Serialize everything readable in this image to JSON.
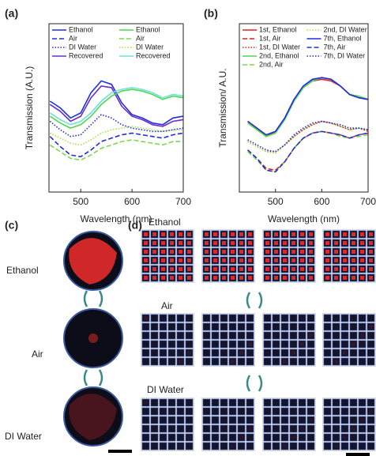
{
  "chart_data": [
    {
      "type": "line",
      "panel_label": "(a)",
      "x_label": "Wavelength (nm)",
      "y_label": "Transmission (A.U.)",
      "x": [
        440,
        460,
        480,
        500,
        520,
        540,
        560,
        580,
        600,
        620,
        640,
        660,
        680,
        700
      ],
      "xlim": [
        438,
        700
      ],
      "xticks": [
        500,
        600,
        700
      ],
      "ylim": [
        0,
        1
      ],
      "series": [
        {
          "name": "Ethanol",
          "color": "#1f2fe0",
          "dash": "solid",
          "values": [
            0.54,
            0.5,
            0.44,
            0.47,
            0.59,
            0.66,
            0.64,
            0.53,
            0.46,
            0.44,
            0.41,
            0.4,
            0.44,
            0.45
          ]
        },
        {
          "name": "Air",
          "color": "#1f2fe0",
          "dash": "dashed",
          "values": [
            0.33,
            0.27,
            0.22,
            0.21,
            0.25,
            0.3,
            0.32,
            0.34,
            0.35,
            0.34,
            0.33,
            0.32,
            0.34,
            0.35
          ]
        },
        {
          "name": "DI Water",
          "color": "#1f2fe0",
          "dash": "dotted",
          "values": [
            0.42,
            0.37,
            0.33,
            0.34,
            0.4,
            0.46,
            0.44,
            0.4,
            0.38,
            0.37,
            0.36,
            0.36,
            0.37,
            0.38
          ]
        },
        {
          "name": "Recovered",
          "color": "#6a2fc8",
          "dash": "solid",
          "values": [
            0.52,
            0.48,
            0.42,
            0.45,
            0.56,
            0.63,
            0.62,
            0.51,
            0.45,
            0.43,
            0.4,
            0.39,
            0.42,
            0.43
          ]
        },
        {
          "name": "Ethanol",
          "color": "#4ed84e",
          "dash": "solid",
          "values": [
            0.45,
            0.41,
            0.38,
            0.4,
            0.45,
            0.52,
            0.57,
            0.6,
            0.61,
            0.6,
            0.58,
            0.55,
            0.57,
            0.56
          ]
        },
        {
          "name": "Air",
          "color": "#7ed84e",
          "dash": "dashed",
          "values": [
            0.28,
            0.24,
            0.2,
            0.19,
            0.22,
            0.26,
            0.28,
            0.3,
            0.31,
            0.3,
            0.29,
            0.28,
            0.3,
            0.3
          ]
        },
        {
          "name": "DI Water",
          "color": "#a8e04e",
          "dash": "dotted",
          "values": [
            0.35,
            0.32,
            0.29,
            0.28,
            0.31,
            0.35,
            0.37,
            0.38,
            0.39,
            0.38,
            0.37,
            0.36,
            0.37,
            0.37
          ]
        },
        {
          "name": "Recovered",
          "color": "#6fe0e0",
          "dash": "solid",
          "values": [
            0.47,
            0.43,
            0.4,
            0.42,
            0.47,
            0.54,
            0.59,
            0.61,
            0.62,
            0.61,
            0.59,
            0.56,
            0.58,
            0.57
          ]
        }
      ]
    },
    {
      "type": "line",
      "panel_label": "(b)",
      "x_label": "Wavelength (nm)",
      "y_label": "Transmission/ A.U.",
      "x": [
        440,
        460,
        480,
        500,
        520,
        540,
        560,
        580,
        600,
        620,
        640,
        660,
        680,
        700
      ],
      "xlim": [
        422,
        700
      ],
      "xticks": [
        500,
        600,
        700
      ],
      "ylim": [
        0,
        1
      ],
      "series": [
        {
          "name": "1st, Ethanol",
          "color": "#e02020",
          "dash": "solid",
          "values": [
            0.42,
            0.38,
            0.33,
            0.36,
            0.44,
            0.55,
            0.62,
            0.66,
            0.67,
            0.66,
            0.63,
            0.58,
            0.56,
            0.55
          ]
        },
        {
          "name": "1st, Air",
          "color": "#e02020",
          "dash": "dashed",
          "values": [
            0.25,
            0.2,
            0.14,
            0.13,
            0.18,
            0.26,
            0.32,
            0.35,
            0.36,
            0.35,
            0.34,
            0.32,
            0.34,
            0.35
          ]
        },
        {
          "name": "1st, DI Water",
          "color": "#e02020",
          "dash": "dotted",
          "values": [
            0.3,
            0.27,
            0.24,
            0.24,
            0.28,
            0.33,
            0.37,
            0.4,
            0.42,
            0.41,
            0.39,
            0.37,
            0.38,
            0.36
          ]
        },
        {
          "name": "2nd, Ethanol",
          "color": "#4ed84e",
          "dash": "solid",
          "values": [
            0.41,
            0.37,
            0.33,
            0.35,
            0.43,
            0.54,
            0.62,
            0.66,
            0.68,
            0.67,
            0.63,
            0.58,
            0.57,
            0.55
          ]
        },
        {
          "name": "2nd, Air",
          "color": "#7ed84e",
          "dash": "dashed",
          "values": [
            0.24,
            0.19,
            0.13,
            0.12,
            0.18,
            0.26,
            0.32,
            0.35,
            0.36,
            0.35,
            0.33,
            0.32,
            0.33,
            0.34
          ]
        },
        {
          "name": "2nd, DI Water",
          "color": "#a8e04e",
          "dash": "dotted",
          "values": [
            0.3,
            0.27,
            0.24,
            0.23,
            0.28,
            0.33,
            0.37,
            0.4,
            0.42,
            0.41,
            0.39,
            0.37,
            0.38,
            0.37
          ]
        },
        {
          "name": "7th, Ethanol",
          "color": "#1f2fe0",
          "dash": "solid",
          "values": [
            0.42,
            0.38,
            0.34,
            0.36,
            0.44,
            0.55,
            0.63,
            0.67,
            0.68,
            0.67,
            0.63,
            0.58,
            0.56,
            0.55
          ]
        },
        {
          "name": "7th, Air",
          "color": "#1f2fe0",
          "dash": "dashed",
          "values": [
            0.25,
            0.2,
            0.13,
            0.12,
            0.18,
            0.26,
            0.32,
            0.35,
            0.36,
            0.35,
            0.34,
            0.32,
            0.34,
            0.35
          ]
        },
        {
          "name": "7th, DI Water",
          "color": "#1f2fe0",
          "dash": "dotted",
          "values": [
            0.31,
            0.28,
            0.25,
            0.24,
            0.28,
            0.34,
            0.38,
            0.41,
            0.42,
            0.41,
            0.4,
            0.38,
            0.38,
            0.37
          ]
        }
      ]
    }
  ],
  "panel_c": {
    "label": "(c)",
    "states": [
      "Ethanol",
      "Air",
      "DI Water"
    ]
  },
  "panel_d": {
    "label": "(d)",
    "states": [
      "Ethanol",
      "Air",
      "DI Water"
    ]
  }
}
